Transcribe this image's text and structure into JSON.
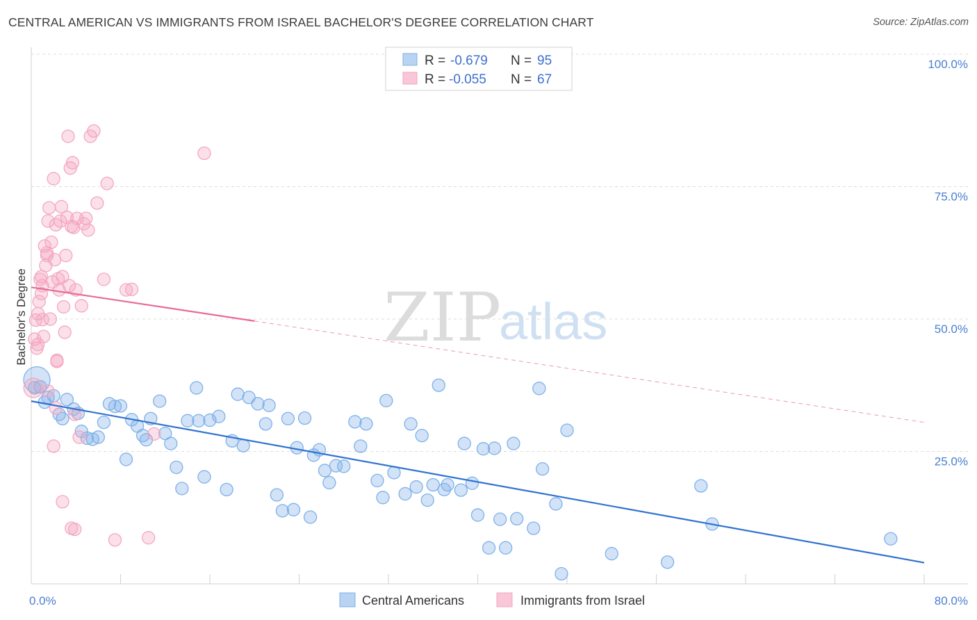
{
  "header": {
    "title": "CENTRAL AMERICAN VS IMMIGRANTS FROM ISRAEL BACHELOR'S DEGREE CORRELATION CHART",
    "source": "Source: ZipAtlas.com"
  },
  "watermark": {
    "zip": "ZIP",
    "atlas": "atlas"
  },
  "legend": {
    "rows": [
      {
        "r_label": "R =",
        "r_value": "-0.679",
        "n_label": "N =",
        "n_value": "95"
      },
      {
        "r_label": "R =",
        "r_value": "-0.055",
        "n_label": "N =",
        "n_value": "67"
      }
    ]
  },
  "chart_data": {
    "type": "scatter",
    "title": "CENTRAL AMERICAN VS IMMIGRANTS FROM ISRAEL BACHELOR'S DEGREE CORRELATION CHART",
    "xlabel": "",
    "ylabel": "Bachelor's Degree",
    "xlim": [
      0,
      80
    ],
    "ylim": [
      0,
      100
    ],
    "x_tick_labels": [
      "0.0%",
      "80.0%"
    ],
    "y_ticks": [
      25,
      50,
      75,
      100
    ],
    "y_tick_labels": [
      "25.0%",
      "50.0%",
      "75.0%",
      "100.0%"
    ],
    "grid": true,
    "legend_position": "top-center",
    "series": [
      {
        "name": "Central Americans",
        "color": "#7fb0e8",
        "line_color": "#2f72d0",
        "r": -0.679,
        "n": 95,
        "trend": {
          "x0": 0,
          "y0": 34.5,
          "x1": 80,
          "y1": 4.0,
          "solid_until": 80
        },
        "points": [
          [
            0.3,
            37.0
          ],
          [
            0.5,
            38.5
          ],
          [
            0.8,
            37.2
          ],
          [
            1.2,
            34.3
          ],
          [
            1.5,
            35.2
          ],
          [
            2.0,
            35.5
          ],
          [
            2.5,
            32.0
          ],
          [
            2.8,
            31.2
          ],
          [
            3.2,
            34.8
          ],
          [
            3.8,
            33.0
          ],
          [
            4.2,
            32.2
          ],
          [
            4.5,
            28.8
          ],
          [
            5.0,
            27.5
          ],
          [
            5.5,
            27.3
          ],
          [
            6.0,
            27.7
          ],
          [
            6.5,
            30.5
          ],
          [
            7.0,
            34.0
          ],
          [
            7.5,
            33.5
          ],
          [
            8.0,
            33.6
          ],
          [
            8.5,
            23.5
          ],
          [
            9.0,
            31.0
          ],
          [
            9.5,
            29.8
          ],
          [
            10.0,
            28.0
          ],
          [
            10.3,
            27.2
          ],
          [
            10.7,
            31.2
          ],
          [
            11.5,
            34.5
          ],
          [
            12.0,
            28.4
          ],
          [
            12.5,
            26.5
          ],
          [
            13.0,
            22.0
          ],
          [
            13.5,
            18.0
          ],
          [
            14.0,
            30.8
          ],
          [
            14.8,
            37.0
          ],
          [
            15.0,
            30.8
          ],
          [
            15.5,
            20.2
          ],
          [
            16.0,
            30.9
          ],
          [
            16.8,
            31.6
          ],
          [
            17.5,
            17.8
          ],
          [
            18.0,
            27.0
          ],
          [
            18.5,
            35.8
          ],
          [
            19.0,
            26.1
          ],
          [
            19.5,
            35.2
          ],
          [
            20.3,
            34.0
          ],
          [
            21.0,
            30.2
          ],
          [
            21.3,
            33.7
          ],
          [
            22.0,
            16.8
          ],
          [
            22.5,
            13.8
          ],
          [
            23.0,
            31.2
          ],
          [
            23.5,
            14.0
          ],
          [
            23.8,
            25.7
          ],
          [
            24.5,
            31.3
          ],
          [
            25.0,
            12.6
          ],
          [
            25.3,
            24.3
          ],
          [
            25.8,
            25.3
          ],
          [
            26.3,
            21.4
          ],
          [
            26.7,
            19.1
          ],
          [
            27.3,
            22.3
          ],
          [
            28.0,
            22.2
          ],
          [
            29.0,
            30.6
          ],
          [
            29.5,
            26.0
          ],
          [
            30.0,
            30.2
          ],
          [
            31.0,
            19.5
          ],
          [
            31.5,
            16.3
          ],
          [
            31.8,
            34.6
          ],
          [
            32.5,
            21.0
          ],
          [
            33.5,
            17.0
          ],
          [
            34.0,
            30.2
          ],
          [
            34.5,
            18.3
          ],
          [
            35.0,
            28.0
          ],
          [
            35.5,
            15.8
          ],
          [
            36.0,
            18.7
          ],
          [
            36.5,
            37.5
          ],
          [
            37.0,
            17.8
          ],
          [
            37.3,
            18.7
          ],
          [
            38.5,
            17.7
          ],
          [
            38.8,
            26.5
          ],
          [
            39.5,
            19.0
          ],
          [
            40.0,
            13.0
          ],
          [
            40.5,
            25.5
          ],
          [
            41.0,
            6.8
          ],
          [
            41.5,
            25.6
          ],
          [
            42.0,
            12.2
          ],
          [
            42.5,
            6.8
          ],
          [
            43.2,
            26.5
          ],
          [
            43.5,
            12.3
          ],
          [
            45.0,
            10.5
          ],
          [
            45.5,
            36.9
          ],
          [
            45.8,
            21.7
          ],
          [
            47.0,
            15.1
          ],
          [
            47.5,
            1.9
          ],
          [
            48.0,
            29.0
          ],
          [
            52.0,
            5.7
          ],
          [
            57.0,
            4.1
          ],
          [
            60.0,
            18.5
          ],
          [
            61.0,
            11.3
          ],
          [
            77.0,
            8.5
          ]
        ]
      },
      {
        "name": "Immigrants from Israel",
        "color": "#f4a6c0",
        "line_color": "#e8699a",
        "r": -0.055,
        "n": 67,
        "trend": {
          "x0": 0,
          "y0": 56.0,
          "x1": 80,
          "y1": 30.5,
          "solid_until": 20
        },
        "points": [
          [
            0.2,
            37.0
          ],
          [
            0.3,
            46.2
          ],
          [
            0.4,
            49.8
          ],
          [
            0.5,
            44.5
          ],
          [
            0.6,
            51.0
          ],
          [
            0.7,
            53.3
          ],
          [
            0.8,
            57.5
          ],
          [
            0.9,
            54.8
          ],
          [
            1.0,
            56.3
          ],
          [
            1.1,
            46.7
          ],
          [
            1.2,
            63.8
          ],
          [
            1.3,
            60.1
          ],
          [
            1.4,
            62.5
          ],
          [
            1.5,
            68.5
          ],
          [
            1.6,
            71.0
          ],
          [
            1.7,
            50.0
          ],
          [
            1.8,
            64.5
          ],
          [
            1.9,
            57.0
          ],
          [
            2.0,
            76.5
          ],
          [
            2.1,
            61.2
          ],
          [
            2.2,
            67.8
          ],
          [
            2.3,
            42.2
          ],
          [
            2.4,
            57.6
          ],
          [
            2.5,
            55.5
          ],
          [
            2.6,
            68.5
          ],
          [
            2.7,
            71.2
          ],
          [
            2.8,
            58.0
          ],
          [
            2.9,
            52.3
          ],
          [
            3.0,
            47.5
          ],
          [
            3.1,
            62.0
          ],
          [
            3.2,
            69.2
          ],
          [
            3.3,
            84.5
          ],
          [
            3.4,
            56.3
          ],
          [
            3.5,
            78.5
          ],
          [
            3.6,
            67.5
          ],
          [
            3.7,
            79.5
          ],
          [
            3.8,
            67.3
          ],
          [
            3.9,
            32.0
          ],
          [
            4.0,
            55.5
          ],
          [
            4.1,
            69.0
          ],
          [
            4.3,
            27.7
          ],
          [
            4.5,
            52.5
          ],
          [
            4.7,
            68.0
          ],
          [
            4.9,
            69.0
          ],
          [
            5.1,
            66.8
          ],
          [
            5.3,
            84.5
          ],
          [
            5.6,
            85.5
          ],
          [
            5.9,
            71.9
          ],
          [
            6.5,
            57.5
          ],
          [
            6.8,
            75.6
          ],
          [
            7.5,
            8.3
          ],
          [
            8.5,
            55.5
          ],
          [
            9.0,
            55.6
          ],
          [
            10.5,
            8.7
          ],
          [
            11.0,
            28.3
          ],
          [
            15.5,
            81.3
          ],
          [
            2.0,
            26.0
          ],
          [
            2.2,
            33.2
          ],
          [
            1.5,
            36.4
          ],
          [
            2.3,
            42.0
          ],
          [
            2.8,
            15.5
          ],
          [
            3.6,
            10.5
          ],
          [
            3.9,
            10.3
          ],
          [
            0.9,
            58.0
          ],
          [
            1.4,
            62.0
          ],
          [
            0.6,
            45.2
          ],
          [
            1.0,
            49.9
          ]
        ]
      }
    ]
  },
  "bottom_legend": {
    "items": [
      {
        "label": "Central Americans"
      },
      {
        "label": "Immigrants from Israel"
      }
    ]
  }
}
